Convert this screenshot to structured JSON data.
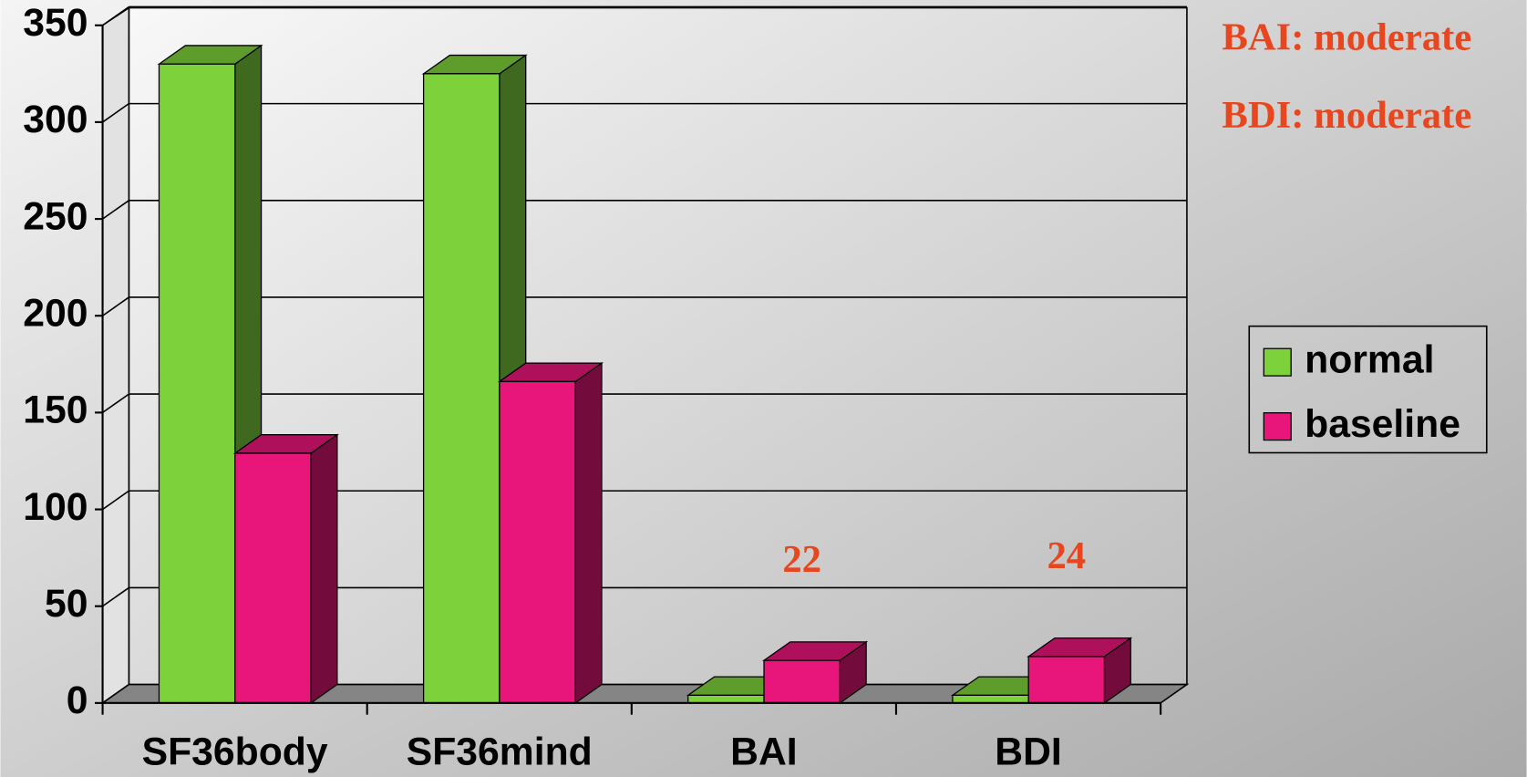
{
  "chart_data": {
    "type": "bar3d",
    "categories": [
      "SF36body",
      "SF36mind",
      "BAI",
      "BDI"
    ],
    "series": [
      {
        "name": "normal",
        "color": "#7dd13b",
        "values": [
          330,
          325,
          4,
          4
        ]
      },
      {
        "name": "baseline",
        "color": "#e8157a",
        "values": [
          129,
          166,
          22,
          24
        ],
        "value_labels": [
          null,
          null,
          "22",
          "24"
        ]
      }
    ],
    "ylim": [
      0,
      350
    ],
    "yticks": [
      0,
      50,
      100,
      150,
      200,
      250,
      300,
      350
    ],
    "grid": true,
    "annotations": [
      "BAI: moderate",
      "BDI: moderate"
    ],
    "legend": "right"
  }
}
